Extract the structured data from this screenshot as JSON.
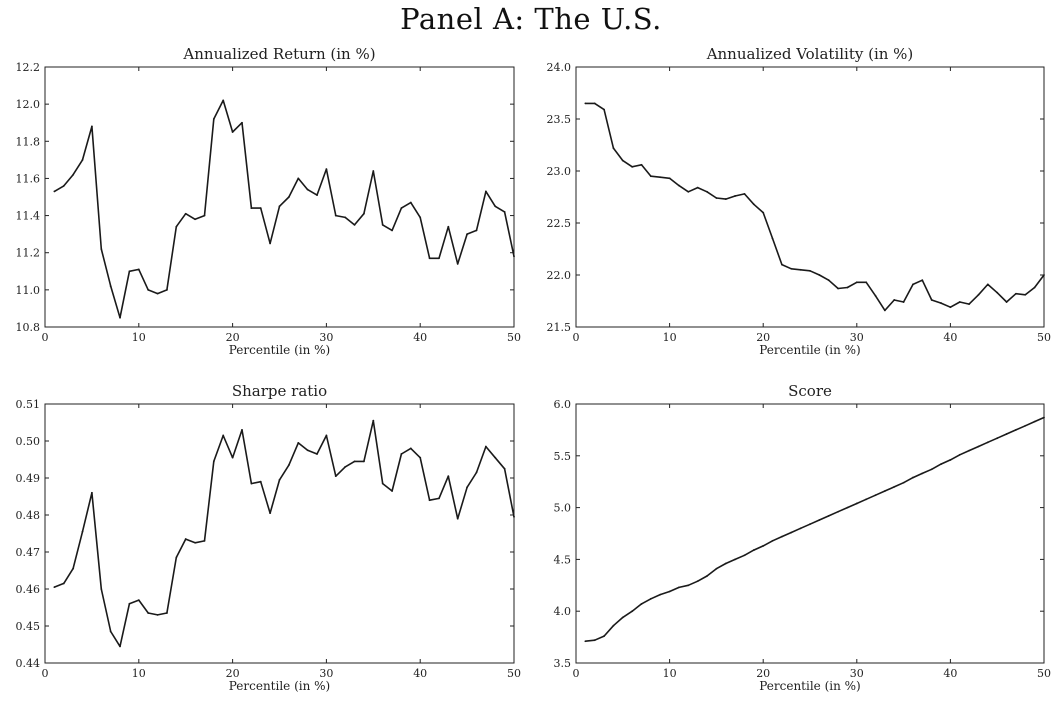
{
  "page_title": "Panel A: The U.S.",
  "chart_data": [
    {
      "type": "line",
      "title": "Annualized Return (in %)",
      "xlabel": "Percentile (in %)",
      "ylabel": "",
      "xlim": [
        0,
        50
      ],
      "ylim": [
        10.8,
        12.2
      ],
      "xticks": [
        "0",
        "10",
        "20",
        "30",
        "40",
        "50"
      ],
      "yticks": [
        "10.8",
        "11.0",
        "11.2",
        "11.4",
        "11.6",
        "11.8",
        "12.0",
        "12.2"
      ],
      "x": [
        1,
        2,
        3,
        4,
        5,
        6,
        7,
        8,
        9,
        10,
        11,
        12,
        13,
        14,
        15,
        16,
        17,
        18,
        19,
        20,
        21,
        22,
        23,
        24,
        25,
        26,
        27,
        28,
        29,
        30,
        31,
        32,
        33,
        34,
        35,
        36,
        37,
        38,
        39,
        40,
        41,
        42,
        43,
        44,
        45,
        46,
        47,
        48,
        49,
        50
      ],
      "series": [
        {
          "values": [
            11.53,
            11.56,
            11.62,
            11.7,
            11.88,
            11.22,
            11.02,
            10.85,
            11.1,
            11.11,
            11.0,
            10.98,
            11.0,
            11.34,
            11.41,
            11.38,
            11.4,
            11.92,
            12.02,
            11.85,
            11.9,
            11.44,
            11.44,
            11.25,
            11.45,
            11.5,
            11.6,
            11.54,
            11.51,
            11.65,
            11.4,
            11.39,
            11.35,
            11.41,
            11.64,
            11.35,
            11.32,
            11.44,
            11.47,
            11.39,
            11.17,
            11.17,
            11.34,
            11.14,
            11.3,
            11.32,
            11.53,
            11.45,
            11.42,
            11.18
          ]
        }
      ]
    },
    {
      "type": "line",
      "title": "Annualized Volatility (in %)",
      "xlabel": "Percentile (in %)",
      "ylabel": "",
      "xlim": [
        0,
        50
      ],
      "ylim": [
        21.5,
        24.0
      ],
      "xticks": [
        "0",
        "10",
        "20",
        "30",
        "40",
        "50"
      ],
      "yticks": [
        "21.5",
        "22.0",
        "22.5",
        "23.0",
        "23.5",
        "24.0"
      ],
      "x": [
        1,
        2,
        3,
        4,
        5,
        6,
        7,
        8,
        9,
        10,
        11,
        12,
        13,
        14,
        15,
        16,
        17,
        18,
        19,
        20,
        21,
        22,
        23,
        24,
        25,
        26,
        27,
        28,
        29,
        30,
        31,
        32,
        33,
        34,
        35,
        36,
        37,
        38,
        39,
        40,
        41,
        42,
        43,
        44,
        45,
        46,
        47,
        48,
        49,
        50
      ],
      "series": [
        {
          "values": [
            23.65,
            23.65,
            23.59,
            23.22,
            23.1,
            23.04,
            23.06,
            22.95,
            22.94,
            22.93,
            22.86,
            22.8,
            22.84,
            22.8,
            22.74,
            22.73,
            22.76,
            22.78,
            22.68,
            22.6,
            22.35,
            22.1,
            22.06,
            22.05,
            22.04,
            22.0,
            21.95,
            21.87,
            21.88,
            21.93,
            21.93,
            21.8,
            21.66,
            21.76,
            21.74,
            21.91,
            21.95,
            21.76,
            21.73,
            21.69,
            21.74,
            21.72,
            21.81,
            21.91,
            21.83,
            21.74,
            21.82,
            21.81,
            21.88,
            22.0
          ]
        }
      ]
    },
    {
      "type": "line",
      "title": "Sharpe ratio",
      "xlabel": "Percentile (in %)",
      "ylabel": "",
      "xlim": [
        0,
        50
      ],
      "ylim": [
        0.44,
        0.51
      ],
      "xticks": [
        "0",
        "10",
        "20",
        "30",
        "40",
        "50"
      ],
      "yticks": [
        "0.44",
        "0.45",
        "0.46",
        "0.47",
        "0.48",
        "0.49",
        "0.50",
        "0.51"
      ],
      "x": [
        1,
        2,
        3,
        4,
        5,
        6,
        7,
        8,
        9,
        10,
        11,
        12,
        13,
        14,
        15,
        16,
        17,
        18,
        19,
        20,
        21,
        22,
        23,
        24,
        25,
        26,
        27,
        28,
        29,
        30,
        31,
        32,
        33,
        34,
        35,
        36,
        37,
        38,
        39,
        40,
        41,
        42,
        43,
        44,
        45,
        46,
        47,
        48,
        49,
        50
      ],
      "series": [
        {
          "values": [
            0.4605,
            0.4615,
            0.4655,
            0.4755,
            0.486,
            0.46,
            0.4485,
            0.4445,
            0.456,
            0.457,
            0.4535,
            0.453,
            0.4535,
            0.4685,
            0.4735,
            0.4725,
            0.473,
            0.4945,
            0.5015,
            0.4955,
            0.503,
            0.4885,
            0.489,
            0.4805,
            0.4895,
            0.4935,
            0.4995,
            0.4975,
            0.4965,
            0.5015,
            0.4905,
            0.493,
            0.4945,
            0.4945,
            0.5055,
            0.4885,
            0.4865,
            0.4965,
            0.498,
            0.4955,
            0.484,
            0.4845,
            0.4905,
            0.479,
            0.4875,
            0.4915,
            0.4985,
            0.4955,
            0.4925,
            0.4795
          ]
        }
      ]
    },
    {
      "type": "line",
      "title": "Score",
      "xlabel": "Percentile (in %)",
      "ylabel": "",
      "xlim": [
        0,
        50
      ],
      "ylim": [
        3.5,
        6.0
      ],
      "xticks": [
        "0",
        "10",
        "20",
        "30",
        "40",
        "50"
      ],
      "yticks": [
        "3.5",
        "4.0",
        "4.5",
        "5.0",
        "5.5",
        "6.0"
      ],
      "x": [
        1,
        2,
        3,
        4,
        5,
        6,
        7,
        8,
        9,
        10,
        11,
        12,
        13,
        14,
        15,
        16,
        17,
        18,
        19,
        20,
        21,
        22,
        23,
        24,
        25,
        26,
        27,
        28,
        29,
        30,
        31,
        32,
        33,
        34,
        35,
        36,
        37,
        38,
        39,
        40,
        41,
        42,
        43,
        44,
        45,
        46,
        47,
        48,
        49,
        50
      ],
      "series": [
        {
          "values": [
            3.71,
            3.72,
            3.76,
            3.86,
            3.94,
            4.0,
            4.07,
            4.12,
            4.16,
            4.19,
            4.23,
            4.25,
            4.29,
            4.34,
            4.41,
            4.46,
            4.5,
            4.54,
            4.59,
            4.63,
            4.68,
            4.72,
            4.76,
            4.8,
            4.84,
            4.88,
            4.92,
            4.96,
            5.0,
            5.04,
            5.08,
            5.12,
            5.16,
            5.2,
            5.24,
            5.29,
            5.33,
            5.37,
            5.42,
            5.46,
            5.51,
            5.55,
            5.59,
            5.63,
            5.67,
            5.71,
            5.75,
            5.79,
            5.83,
            5.87
          ]
        }
      ]
    }
  ]
}
